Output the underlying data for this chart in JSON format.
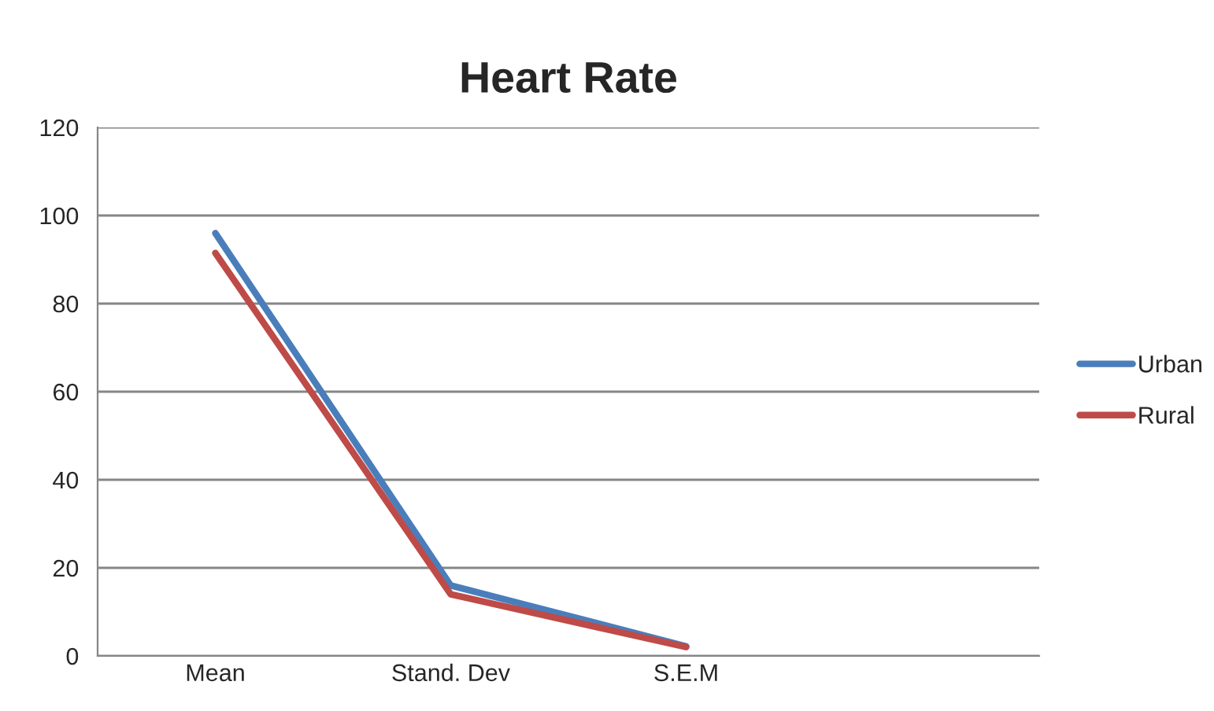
{
  "chart_data": {
    "type": "line",
    "title": "Heart Rate",
    "categories": [
      "Mean",
      "Stand. Dev",
      "S.E.M",
      null
    ],
    "series": [
      {
        "name": "Urban",
        "color": "#4a7ebb",
        "values": [
          96,
          16,
          2.2,
          null
        ]
      },
      {
        "name": "Rural",
        "color": "#be4b48",
        "values": [
          91.5,
          14,
          2,
          null
        ]
      }
    ],
    "ylim": [
      0,
      120
    ],
    "yticks": [
      0,
      20,
      40,
      60,
      80,
      100,
      120
    ],
    "grid": "y",
    "legend": "right",
    "marker": "none",
    "line_style": "solid"
  }
}
